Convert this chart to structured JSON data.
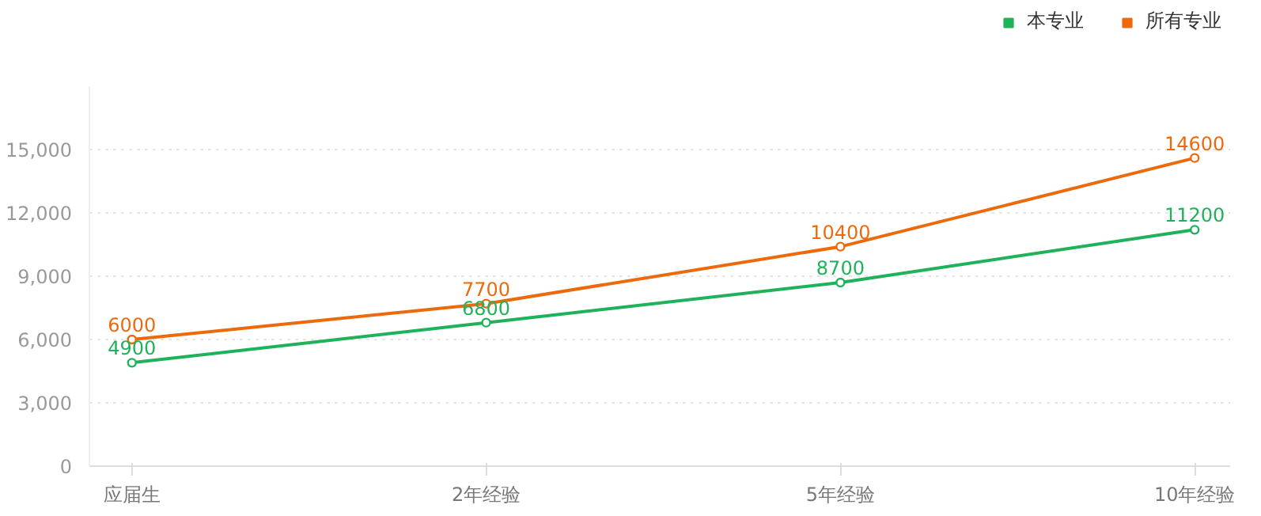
{
  "chart_data": {
    "type": "line",
    "categories": [
      "应届生",
      "2年经验",
      "5年经验",
      "10年经验"
    ],
    "series": [
      {
        "name": "本专业",
        "color": "#1fb25a",
        "values": [
          4900,
          6800,
          8700,
          11200
        ]
      },
      {
        "name": "所有专业",
        "color": "#ec6a0c",
        "values": [
          6000,
          7700,
          10400,
          14600
        ]
      }
    ],
    "ylim": [
      0,
      18000
    ],
    "yticks": [
      0,
      {
        "value": 3000,
        "label": "3,000"
      },
      {
        "value": 6000,
        "label": "6,000"
      },
      {
        "value": 9000,
        "label": "9,000"
      },
      {
        "value": 12000,
        "label": "12,000"
      },
      {
        "value": 15000,
        "label": "15,000"
      }
    ],
    "grid": "y",
    "legend": "top right",
    "marker": "circle",
    "line_style": "solid",
    "data_labels": true
  }
}
